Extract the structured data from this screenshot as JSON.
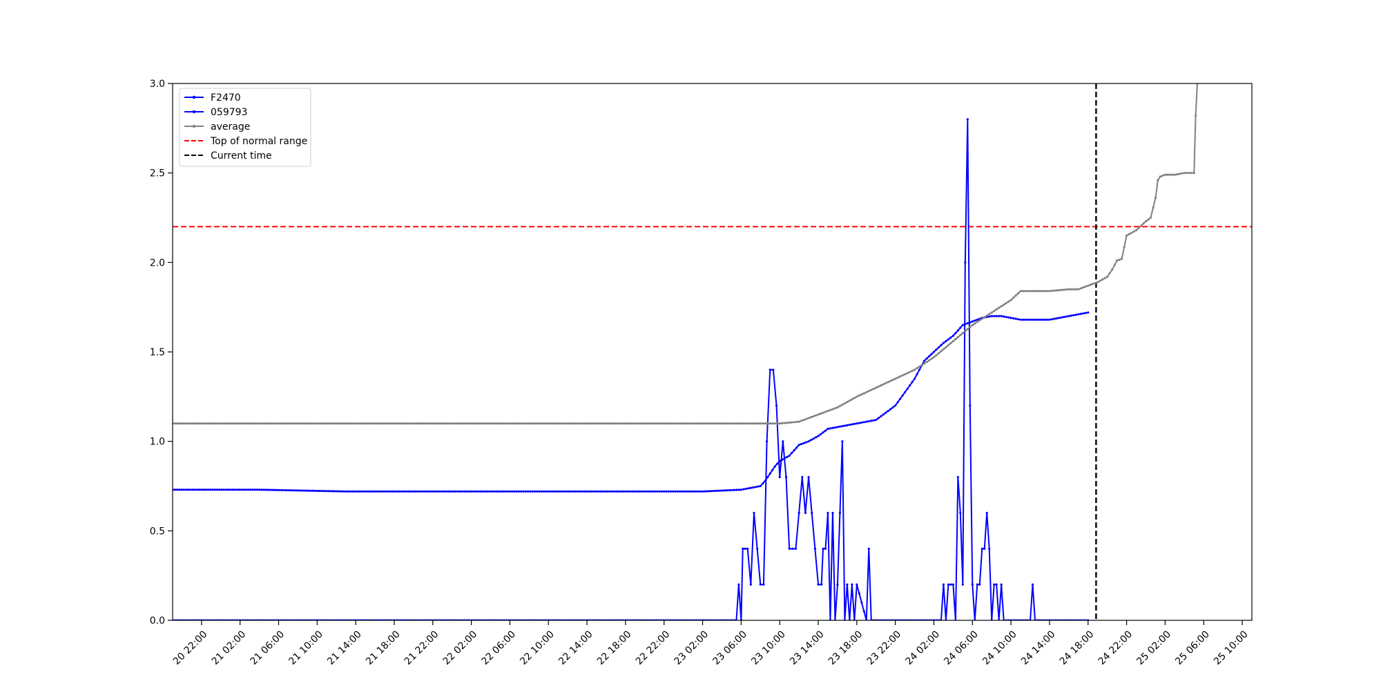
{
  "chart_data": {
    "type": "line",
    "title": "",
    "xlabel": "",
    "ylabel": "",
    "x_start": "2023-01-20T19:00",
    "xlim": [
      "2023-01-20T19:00",
      "2023-01-25T11:00"
    ],
    "ylim": [
      0,
      3
    ],
    "x_tick_labels": [
      "20 22:00",
      "21 02:00",
      "21 06:00",
      "21 10:00",
      "21 14:00",
      "21 18:00",
      "21 22:00",
      "22 02:00",
      "22 06:00",
      "22 10:00",
      "22 14:00",
      "22 18:00",
      "22 22:00",
      "23 02:00",
      "23 06:00",
      "23 10:00",
      "23 14:00",
      "23 18:00",
      "23 22:00",
      "24 02:00",
      "24 06:00",
      "24 10:00",
      "24 14:00",
      "24 18:00",
      "24 22:00",
      "25 02:00",
      "25 06:00",
      "25 10:00"
    ],
    "y_ticks": [
      0.0,
      0.5,
      1.0,
      1.5,
      2.0,
      2.5,
      3.0
    ],
    "y_tick_labels": [
      "0.0",
      "0.5",
      "1.0",
      "1.5",
      "2.0",
      "2.5",
      "3.0"
    ],
    "grid": false,
    "legend_position": "upper-left",
    "series": [
      {
        "name": "F2470",
        "color": "#0000ff",
        "x": [
          "2023-01-20T19:00",
          "2023-01-21T04:00",
          "2023-01-21T13:00",
          "2023-01-21T19:00",
          "2023-01-22T02:00",
          "2023-01-22T10:00",
          "2023-01-22T18:00",
          "2023-01-23T02:00",
          "2023-01-23T06:00",
          "2023-01-23T07:00",
          "2023-01-23T08:00",
          "2023-01-23T08:30",
          "2023-01-23T09:00",
          "2023-01-23T09:30",
          "2023-01-23T10:00",
          "2023-01-23T11:00",
          "2023-01-23T12:00",
          "2023-01-23T13:00",
          "2023-01-23T14:00",
          "2023-01-23T15:00",
          "2023-01-23T16:00",
          "2023-01-23T18:00",
          "2023-01-23T20:00",
          "2023-01-23T22:00",
          "2023-01-24T00:00",
          "2023-01-24T01:00",
          "2023-01-24T02:00",
          "2023-01-24T03:00",
          "2023-01-24T04:00",
          "2023-01-24T05:00",
          "2023-01-24T06:00",
          "2023-01-24T07:00",
          "2023-01-24T08:00",
          "2023-01-24T09:00",
          "2023-01-24T10:00",
          "2023-01-24T11:00",
          "2023-01-24T12:00",
          "2023-01-24T14:00",
          "2023-01-24T15:00",
          "2023-01-24T16:00",
          "2023-01-24T17:00",
          "2023-01-24T18:00"
        ],
        "y": [
          0.73,
          0.73,
          0.72,
          0.72,
          0.72,
          0.72,
          0.72,
          0.72,
          0.73,
          0.74,
          0.75,
          0.78,
          0.82,
          0.86,
          0.89,
          0.92,
          0.98,
          1.0,
          1.03,
          1.07,
          1.08,
          1.1,
          1.12,
          1.2,
          1.35,
          1.45,
          1.5,
          1.55,
          1.59,
          1.65,
          1.67,
          1.69,
          1.7,
          1.7,
          1.69,
          1.68,
          1.68,
          1.68,
          1.69,
          1.7,
          1.71,
          1.72
        ]
      },
      {
        "name": "059793",
        "color": "#0000ff",
        "x": [
          "2023-01-20T19:00",
          "2023-01-23T05:30",
          "2023-01-23T05:45",
          "2023-01-23T06:00",
          "2023-01-23T06:10",
          "2023-01-23T06:40",
          "2023-01-23T07:00",
          "2023-01-23T07:20",
          "2023-01-23T07:40",
          "2023-01-23T08:00",
          "2023-01-23T08:20",
          "2023-01-23T08:40",
          "2023-01-23T09:00",
          "2023-01-23T09:20",
          "2023-01-23T09:40",
          "2023-01-23T10:00",
          "2023-01-23T10:20",
          "2023-01-23T10:40",
          "2023-01-23T11:00",
          "2023-01-23T11:40",
          "2023-01-23T12:00",
          "2023-01-23T12:20",
          "2023-01-23T12:40",
          "2023-01-23T13:00",
          "2023-01-23T13:20",
          "2023-01-23T13:40",
          "2023-01-23T14:00",
          "2023-01-23T14:20",
          "2023-01-23T14:30",
          "2023-01-23T14:45",
          "2023-01-23T15:00",
          "2023-01-23T15:15",
          "2023-01-23T15:30",
          "2023-01-23T15:45",
          "2023-01-23T16:00",
          "2023-01-23T16:15",
          "2023-01-23T16:30",
          "2023-01-23T16:45",
          "2023-01-23T17:00",
          "2023-01-23T17:15",
          "2023-01-23T17:30",
          "2023-01-23T17:45",
          "2023-01-23T18:00",
          "2023-01-23T19:00",
          "2023-01-23T19:15",
          "2023-01-23T19:30",
          "2023-01-24T02:45",
          "2023-01-24T03:00",
          "2023-01-24T03:15",
          "2023-01-24T03:30",
          "2023-01-24T03:45",
          "2023-01-24T04:00",
          "2023-01-24T04:15",
          "2023-01-24T04:30",
          "2023-01-24T04:45",
          "2023-01-24T05:00",
          "2023-01-24T05:15",
          "2023-01-24T05:30",
          "2023-01-24T05:45",
          "2023-01-24T06:00",
          "2023-01-24T06:15",
          "2023-01-24T06:30",
          "2023-01-24T06:45",
          "2023-01-24T07:00",
          "2023-01-24T07:15",
          "2023-01-24T07:30",
          "2023-01-24T07:45",
          "2023-01-24T08:00",
          "2023-01-24T08:15",
          "2023-01-24T08:30",
          "2023-01-24T08:45",
          "2023-01-24T09:00",
          "2023-01-24T09:15",
          "2023-01-24T09:30",
          "2023-01-24T09:45",
          "2023-01-24T10:00",
          "2023-01-24T10:15",
          "2023-01-24T10:30",
          "2023-01-24T12:00",
          "2023-01-24T12:15",
          "2023-01-24T12:30",
          "2023-01-24T18:00"
        ],
        "y": [
          0.0,
          0.0,
          0.2,
          0.0,
          0.4,
          0.4,
          0.2,
          0.6,
          0.4,
          0.2,
          0.2,
          1.0,
          1.4,
          1.4,
          1.2,
          0.8,
          1.0,
          0.8,
          0.4,
          0.4,
          0.6,
          0.8,
          0.6,
          0.8,
          0.6,
          0.4,
          0.2,
          0.2,
          0.4,
          0.4,
          0.6,
          0.0,
          0.6,
          0.0,
          0.2,
          0.6,
          1.0,
          0.0,
          0.2,
          0.0,
          0.2,
          0.0,
          0.2,
          0.0,
          0.4,
          0.0,
          0.0,
          0.2,
          0.0,
          0.2,
          0.2,
          0.2,
          0.0,
          0.8,
          0.6,
          0.2,
          2.0,
          2.8,
          1.2,
          0.2,
          0.0,
          0.2,
          0.2,
          0.4,
          0.4,
          0.6,
          0.4,
          0.0,
          0.2,
          0.2,
          0.0,
          0.2,
          0.0,
          0.0,
          0.0,
          0.0,
          0.0,
          0.0,
          0.0,
          0.2,
          0.0,
          0.0
        ]
      },
      {
        "name": "average",
        "color": "#808080",
        "x": [
          "2023-01-20T19:00",
          "2023-01-21T05:00",
          "2023-01-21T15:00",
          "2023-01-22T00:00",
          "2023-01-22T10:00",
          "2023-01-22T20:00",
          "2023-01-23T06:00",
          "2023-01-23T09:00",
          "2023-01-23T10:00",
          "2023-01-23T12:00",
          "2023-01-23T14:00",
          "2023-01-23T16:00",
          "2023-01-23T18:00",
          "2023-01-23T20:00",
          "2023-01-23T22:00",
          "2023-01-24T00:00",
          "2023-01-24T02:00",
          "2023-01-24T04:00",
          "2023-01-24T06:00",
          "2023-01-24T08:00",
          "2023-01-24T10:00",
          "2023-01-24T11:00",
          "2023-01-24T12:00",
          "2023-01-24T14:00",
          "2023-01-24T16:00",
          "2023-01-24T17:00",
          "2023-01-24T18:00",
          "2023-01-24T19:00",
          "2023-01-24T20:00",
          "2023-01-24T20:30",
          "2023-01-24T21:00",
          "2023-01-24T21:30",
          "2023-01-24T22:00",
          "2023-01-24T23:00",
          "2023-01-25T00:00",
          "2023-01-25T00:30",
          "2023-01-25T01:00",
          "2023-01-25T01:15",
          "2023-01-25T01:30",
          "2023-01-25T02:00",
          "2023-01-25T03:00",
          "2023-01-25T04:00",
          "2023-01-25T04:30",
          "2023-01-25T05:00",
          "2023-01-25T05:10",
          "2023-01-25T05:20"
        ],
        "y": [
          1.1,
          1.1,
          1.1,
          1.1,
          1.1,
          1.1,
          1.1,
          1.1,
          1.1,
          1.11,
          1.15,
          1.19,
          1.25,
          1.3,
          1.35,
          1.4,
          1.47,
          1.56,
          1.65,
          1.72,
          1.79,
          1.84,
          1.84,
          1.84,
          1.85,
          1.85,
          1.87,
          1.89,
          1.92,
          1.96,
          2.01,
          2.02,
          2.15,
          2.18,
          2.23,
          2.25,
          2.36,
          2.46,
          2.48,
          2.49,
          2.49,
          2.5,
          2.5,
          2.5,
          2.82,
          3.0
        ]
      }
    ],
    "reference_lines": [
      {
        "name": "Top of normal range",
        "orientation": "horizontal",
        "value": 2.2,
        "color": "#ff0000",
        "style": "dashed"
      },
      {
        "name": "Current time",
        "orientation": "vertical",
        "value": "2023-01-24T18:50",
        "color": "#000000",
        "style": "dashed"
      }
    ],
    "legend": [
      {
        "label": "F2470",
        "color": "#0000ff",
        "style": "line-marker"
      },
      {
        "label": "059793",
        "color": "#0000ff",
        "style": "line-marker"
      },
      {
        "label": "average",
        "color": "#808080",
        "style": "line-marker"
      },
      {
        "label": "Top of normal range",
        "color": "#ff0000",
        "style": "dashed"
      },
      {
        "label": "Current time",
        "color": "#000000",
        "style": "dashed"
      }
    ]
  }
}
